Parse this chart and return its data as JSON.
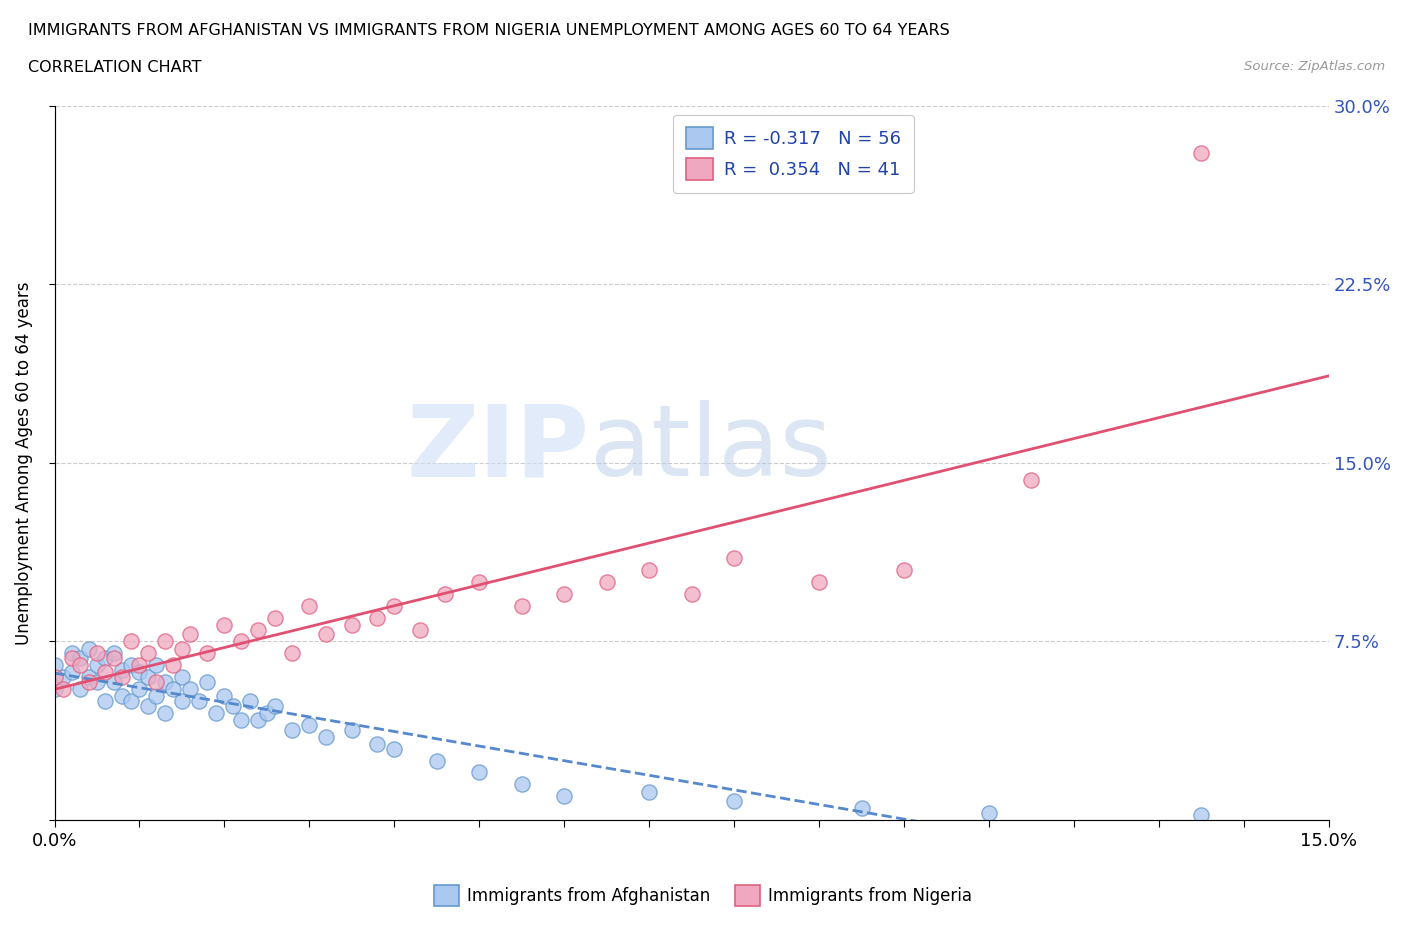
{
  "title_line1": "IMMIGRANTS FROM AFGHANISTAN VS IMMIGRANTS FROM NIGERIA UNEMPLOYMENT AMONG AGES 60 TO 64 YEARS",
  "title_line2": "CORRELATION CHART",
  "source": "Source: ZipAtlas.com",
  "ylabel": "Unemployment Among Ages 60 to 64 years",
  "legend_label_1": "Immigrants from Afghanistan",
  "legend_label_2": "Immigrants from Nigeria",
  "R1": -0.317,
  "N1": 56,
  "R2": 0.354,
  "N2": 41,
  "color_afghanistan": "#aac8f0",
  "color_nigeria": "#f0a8c0",
  "edge_color_afghanistan": "#6699cc",
  "edge_color_nigeria": "#e06080",
  "line_color_afghanistan": "#5588cc",
  "line_color_nigeria": "#e05070",
  "xlim": [
    0.0,
    0.15
  ],
  "ylim": [
    0.0,
    0.3
  ],
  "ytick_values": [
    0.0,
    0.075,
    0.15,
    0.225,
    0.3
  ],
  "ytick_labels": [
    "",
    "7.5%",
    "15.0%",
    "22.5%",
    "30.0%"
  ],
  "watermark_zip": "ZIP",
  "watermark_atlas": "atlas",
  "afghanistan_x": [
    0.0,
    0.0,
    0.001,
    0.002,
    0.002,
    0.003,
    0.003,
    0.004,
    0.004,
    0.005,
    0.005,
    0.006,
    0.006,
    0.007,
    0.007,
    0.008,
    0.008,
    0.009,
    0.009,
    0.01,
    0.01,
    0.011,
    0.011,
    0.012,
    0.012,
    0.013,
    0.013,
    0.014,
    0.015,
    0.015,
    0.016,
    0.017,
    0.018,
    0.019,
    0.02,
    0.021,
    0.022,
    0.023,
    0.024,
    0.025,
    0.026,
    0.028,
    0.03,
    0.032,
    0.035,
    0.038,
    0.04,
    0.045,
    0.05,
    0.055,
    0.06,
    0.07,
    0.08,
    0.095,
    0.11,
    0.135
  ],
  "afghanistan_y": [
    0.065,
    0.055,
    0.06,
    0.07,
    0.062,
    0.068,
    0.055,
    0.072,
    0.06,
    0.065,
    0.058,
    0.068,
    0.05,
    0.07,
    0.058,
    0.063,
    0.052,
    0.065,
    0.05,
    0.062,
    0.055,
    0.06,
    0.048,
    0.065,
    0.052,
    0.058,
    0.045,
    0.055,
    0.06,
    0.05,
    0.055,
    0.05,
    0.058,
    0.045,
    0.052,
    0.048,
    0.042,
    0.05,
    0.042,
    0.045,
    0.048,
    0.038,
    0.04,
    0.035,
    0.038,
    0.032,
    0.03,
    0.025,
    0.02,
    0.015,
    0.01,
    0.012,
    0.008,
    0.005,
    0.003,
    0.002
  ],
  "nigeria_x": [
    0.0,
    0.001,
    0.002,
    0.003,
    0.004,
    0.005,
    0.006,
    0.007,
    0.008,
    0.009,
    0.01,
    0.011,
    0.012,
    0.013,
    0.014,
    0.015,
    0.016,
    0.018,
    0.02,
    0.022,
    0.024,
    0.026,
    0.028,
    0.03,
    0.032,
    0.035,
    0.038,
    0.04,
    0.043,
    0.046,
    0.05,
    0.055,
    0.06,
    0.065,
    0.07,
    0.075,
    0.08,
    0.09,
    0.1,
    0.115,
    0.135
  ],
  "nigeria_y": [
    0.06,
    0.055,
    0.068,
    0.065,
    0.058,
    0.07,
    0.062,
    0.068,
    0.06,
    0.075,
    0.065,
    0.07,
    0.058,
    0.075,
    0.065,
    0.072,
    0.078,
    0.07,
    0.082,
    0.075,
    0.08,
    0.085,
    0.07,
    0.09,
    0.078,
    0.082,
    0.085,
    0.09,
    0.08,
    0.095,
    0.1,
    0.09,
    0.095,
    0.1,
    0.105,
    0.095,
    0.11,
    0.1,
    0.105,
    0.143,
    0.28
  ]
}
